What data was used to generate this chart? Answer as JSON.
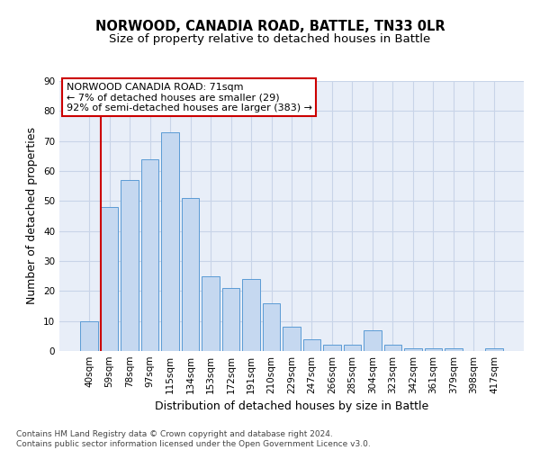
{
  "title": "NORWOOD, CANADIA ROAD, BATTLE, TN33 0LR",
  "subtitle": "Size of property relative to detached houses in Battle",
  "xlabel": "Distribution of detached houses by size in Battle",
  "ylabel": "Number of detached properties",
  "categories": [
    "40sqm",
    "59sqm",
    "78sqm",
    "97sqm",
    "115sqm",
    "134sqm",
    "153sqm",
    "172sqm",
    "191sqm",
    "210sqm",
    "229sqm",
    "247sqm",
    "266sqm",
    "285sqm",
    "304sqm",
    "323sqm",
    "342sqm",
    "361sqm",
    "379sqm",
    "398sqm",
    "417sqm"
  ],
  "values": [
    10,
    48,
    57,
    64,
    73,
    51,
    25,
    21,
    24,
    16,
    8,
    4,
    2,
    2,
    7,
    2,
    1,
    1,
    1,
    0,
    1
  ],
  "bar_color": "#c5d8f0",
  "bar_edge_color": "#5b9bd5",
  "grid_color": "#c8d4e8",
  "background_color": "#e8eef8",
  "vline_color": "#cc0000",
  "vline_pos": 0.575,
  "annotation_text": "NORWOOD CANADIA ROAD: 71sqm\n← 7% of detached houses are smaller (29)\n92% of semi-detached houses are larger (383) →",
  "annotation_box_color": "#ffffff",
  "annotation_box_edge": "#cc0000",
  "ylim": [
    0,
    90
  ],
  "yticks": [
    0,
    10,
    20,
    30,
    40,
    50,
    60,
    70,
    80,
    90
  ],
  "title_fontsize": 10.5,
  "subtitle_fontsize": 9.5,
  "axis_label_fontsize": 9,
  "tick_fontsize": 7.5,
  "annotation_fontsize": 8,
  "footer_fontsize": 6.5,
  "footer": "Contains HM Land Registry data © Crown copyright and database right 2024.\nContains public sector information licensed under the Open Government Licence v3.0."
}
